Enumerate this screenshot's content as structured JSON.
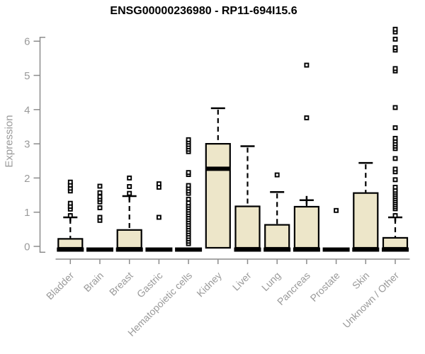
{
  "chart_data": {
    "type": "boxplot",
    "title": "ENSG00000236980 - RP11-694I15.6",
    "ylabel": "Expression",
    "xlabel": "",
    "ylim": [
      0,
      6.35
    ],
    "yticks": [
      0,
      1,
      2,
      3,
      4,
      5,
      6
    ],
    "grid": false,
    "legend": "none",
    "categories": [
      "Bladder",
      "Brain",
      "Breast",
      "Gastric",
      "Hematopoietic cells",
      "Kidney",
      "Liver",
      "Lung",
      "Pancreas",
      "Prostate",
      "Skin",
      "Unknown / Other"
    ],
    "boxes": [
      {
        "label": "Bladder",
        "q1": 0,
        "median": 0,
        "q3": 0.22,
        "whisker_high": 0.85,
        "whisker_plus": true,
        "outliers": [
          0.9,
          1.09,
          1.17,
          1.26,
          1.62,
          1.7,
          1.79,
          1.88
        ]
      },
      {
        "label": "Brain",
        "q1": 0,
        "median": 0,
        "q3": 0,
        "whisker_high": 0,
        "whisker_plus": false,
        "outliers": [
          0.76,
          0.85,
          1.13,
          1.3,
          1.38,
          1.45,
          1.57,
          1.76
        ]
      },
      {
        "label": "Breast",
        "q1": 0,
        "median": 0,
        "q3": 0.48,
        "whisker_high": 1.47,
        "whisker_plus": true,
        "outliers": [
          1.55,
          1.75,
          2.0
        ]
      },
      {
        "label": "Gastric",
        "q1": 0,
        "median": 0,
        "q3": 0,
        "whisker_high": 0,
        "whisker_plus": false,
        "outliers": [
          0.85,
          1.73,
          1.83
        ]
      },
      {
        "label": "Hematopoietic cells",
        "q1": 0,
        "median": 0,
        "q3": 0,
        "whisker_high": 0,
        "whisker_plus": false,
        "outliers": [
          0.08,
          0.15,
          0.22,
          0.29,
          0.36,
          0.43,
          0.5,
          0.57,
          0.64,
          0.71,
          0.78,
          0.85,
          0.92,
          0.99,
          1.06,
          1.13,
          1.2,
          1.27,
          1.38,
          1.55,
          1.62,
          1.7,
          1.78,
          2.1,
          2.16,
          2.77,
          2.84,
          2.91,
          2.98,
          3.05,
          3.12
        ]
      },
      {
        "label": "Kidney",
        "q1": 0,
        "median": 2.27,
        "q3": 3.0,
        "whisker_high": 4.04,
        "whisker_plus": false,
        "outliers": []
      },
      {
        "label": "Liver",
        "q1": 0,
        "median": 0,
        "q3": 1.17,
        "whisker_high": 2.93,
        "whisker_plus": false,
        "outliers": []
      },
      {
        "label": "Lung",
        "q1": 0,
        "median": 0,
        "q3": 0.63,
        "whisker_high": 1.59,
        "whisker_plus": false,
        "outliers": [
          2.09
        ]
      },
      {
        "label": "Pancreas",
        "q1": 0,
        "median": 0,
        "q3": 1.16,
        "whisker_high": 1.35,
        "whisker_plus": true,
        "outliers": [
          3.76,
          5.3
        ]
      },
      {
        "label": "Prostate",
        "q1": 0,
        "median": 0,
        "q3": 0,
        "whisker_high": 0,
        "whisker_plus": false,
        "outliers": [
          1.05
        ]
      },
      {
        "label": "Skin",
        "q1": 0,
        "median": 0,
        "q3": 1.56,
        "whisker_high": 2.44,
        "whisker_plus": false,
        "outliers": []
      },
      {
        "label": "Unknown / Other",
        "q1": 0,
        "median": 0,
        "q3": 0.25,
        "whisker_high": 0.85,
        "whisker_plus": true,
        "outliers": [
          0.9,
          1.1,
          1.16,
          1.22,
          1.28,
          1.34,
          1.4,
          1.46,
          1.52,
          1.58,
          1.64,
          1.73,
          1.95,
          2.18,
          2.26,
          2.57,
          2.86,
          2.93,
          3.0,
          3.08,
          3.16,
          3.47,
          4.06,
          5.13,
          5.2,
          5.74,
          5.81,
          6.06,
          6.27,
          6.35
        ]
      }
    ],
    "colors": {
      "box_fill": "#ede6c9",
      "box_border": "#000000",
      "median": "#000000",
      "whisker": "#000000",
      "outlier": "#000000",
      "axis": "#8c8c8c",
      "tick_label": "#9a9a9a",
      "title": "#000000"
    }
  }
}
